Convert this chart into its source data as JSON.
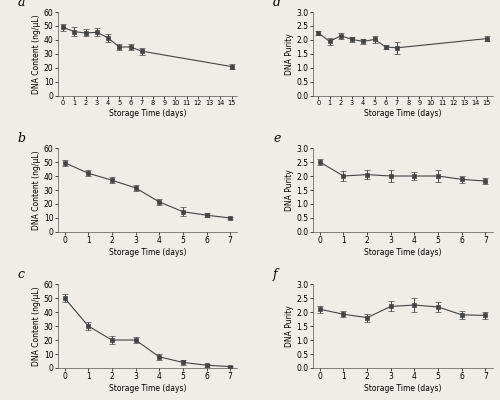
{
  "panel_a": {
    "x": [
      0,
      1,
      2,
      3,
      4,
      5,
      6,
      7,
      15
    ],
    "y": [
      49,
      46,
      45,
      45.5,
      41.5,
      35,
      35,
      32,
      21
    ],
    "yerr": [
      2.5,
      3,
      2.5,
      3,
      3,
      2,
      2,
      2.5,
      1.5
    ],
    "xlabel": "Storage Time (days)",
    "ylabel": "DNA Content (ng/μL)",
    "xlim": [
      -0.5,
      15.5
    ],
    "ylim": [
      0,
      60
    ],
    "xticks": [
      0,
      1,
      2,
      3,
      4,
      5,
      6,
      7,
      8,
      9,
      10,
      11,
      12,
      13,
      14,
      15
    ],
    "yticks": [
      0,
      10,
      20,
      30,
      40,
      50,
      60
    ],
    "label": "a"
  },
  "panel_b": {
    "x": [
      0,
      1,
      2,
      3,
      4,
      5,
      6,
      7
    ],
    "y": [
      49.5,
      42,
      37,
      31.5,
      21.5,
      14.5,
      12,
      10
    ],
    "yerr": [
      2,
      2,
      2,
      2,
      2,
      3,
      1.5,
      1
    ],
    "xlabel": "Storage Time (days)",
    "ylabel": "DNA Content (ng/μL)",
    "xlim": [
      -0.3,
      7.3
    ],
    "ylim": [
      0,
      60
    ],
    "xticks": [
      0,
      1,
      2,
      3,
      4,
      5,
      6,
      7
    ],
    "yticks": [
      0,
      10,
      20,
      30,
      40,
      50,
      60
    ],
    "label": "b"
  },
  "panel_c": {
    "x": [
      0,
      1,
      2,
      3,
      4,
      5,
      6,
      7
    ],
    "y": [
      50,
      30,
      20,
      20,
      8,
      4,
      2,
      1
    ],
    "yerr": [
      3,
      3,
      3,
      2,
      2,
      1.5,
      1,
      0.5
    ],
    "xlabel": "Storage Time (days)",
    "ylabel": "DNA Content (ng/μL)",
    "xlim": [
      -0.3,
      7.3
    ],
    "ylim": [
      0,
      60
    ],
    "xticks": [
      0,
      1,
      2,
      3,
      4,
      5,
      6,
      7
    ],
    "yticks": [
      0,
      10,
      20,
      30,
      40,
      50,
      60
    ],
    "label": "c"
  },
  "panel_d": {
    "x": [
      0,
      1,
      2,
      3,
      4,
      5,
      6,
      7,
      15
    ],
    "y": [
      2.25,
      1.95,
      2.15,
      2.02,
      1.95,
      2.02,
      1.75,
      1.72,
      2.05
    ],
    "yerr": [
      0.08,
      0.12,
      0.1,
      0.08,
      0.08,
      0.12,
      0.08,
      0.22,
      0.1
    ],
    "xlabel": "Storage Time (days)",
    "ylabel": "DNA Purity",
    "xlim": [
      -0.5,
      15.5
    ],
    "ylim": [
      0,
      3
    ],
    "xticks": [
      0,
      1,
      2,
      3,
      4,
      5,
      6,
      7,
      8,
      9,
      10,
      11,
      12,
      13,
      14,
      15
    ],
    "yticks": [
      0,
      0.5,
      1.0,
      1.5,
      2.0,
      2.5,
      3.0
    ],
    "label": "d"
  },
  "panel_e": {
    "x": [
      0,
      1,
      2,
      3,
      4,
      5,
      6,
      7
    ],
    "y": [
      2.5,
      2.0,
      2.05,
      2.0,
      2.0,
      2.0,
      1.88,
      1.82
    ],
    "yerr": [
      0.12,
      0.18,
      0.15,
      0.22,
      0.15,
      0.2,
      0.12,
      0.12
    ],
    "xlabel": "Storage Time (days)",
    "ylabel": "DNA Purity",
    "xlim": [
      -0.3,
      7.3
    ],
    "ylim": [
      0,
      3
    ],
    "xticks": [
      0,
      1,
      2,
      3,
      4,
      5,
      6,
      7
    ],
    "yticks": [
      0,
      0.5,
      1.0,
      1.5,
      2.0,
      2.5,
      3.0
    ],
    "label": "e"
  },
  "panel_f": {
    "x": [
      0,
      1,
      2,
      3,
      4,
      5,
      6,
      7
    ],
    "y": [
      2.1,
      1.92,
      1.8,
      2.2,
      2.25,
      2.18,
      1.9,
      1.88
    ],
    "yerr": [
      0.12,
      0.1,
      0.14,
      0.18,
      0.25,
      0.18,
      0.14,
      0.12
    ],
    "xlabel": "Storage Time (days)",
    "ylabel": "DNA Purity",
    "xlim": [
      -0.3,
      7.3
    ],
    "ylim": [
      0,
      3
    ],
    "xticks": [
      0,
      1,
      2,
      3,
      4,
      5,
      6,
      7
    ],
    "yticks": [
      0,
      0.5,
      1.0,
      1.5,
      2.0,
      2.5,
      3.0
    ],
    "label": "f"
  },
  "line_color": "#444444",
  "marker": "s",
  "markersize": 2.8,
  "capsize": 2,
  "elinewidth": 0.7,
  "linewidth": 0.8,
  "bg_color": "#f0ede8"
}
